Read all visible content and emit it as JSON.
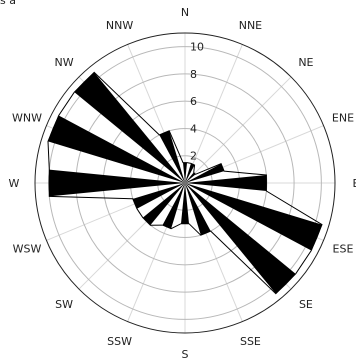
{
  "corner_note": "s a",
  "chart_data": {
    "type": "polar-rose",
    "title": "",
    "directions": [
      "N",
      "NNE",
      "NE",
      "ENE",
      "E",
      "ESE",
      "SE",
      "SSE",
      "S",
      "SSW",
      "SW",
      "WSW",
      "W",
      "WNW",
      "NW",
      "NNW"
    ],
    "series": [
      {
        "name": "",
        "values": [
          1.5,
          1.5,
          1.0,
          3.0,
          6.0,
          10.5,
          10.5,
          4.0,
          3.0,
          3.5,
          4.0,
          4.0,
          10.0,
          10.5,
          10.5,
          4.0
        ]
      }
    ],
    "radial_ticks": [
      2,
      4,
      6,
      8,
      10
    ],
    "radial_max": 11,
    "grid": true,
    "colors": {
      "fill": "#000000",
      "outline": "#000000",
      "grid": "#b8b8b8",
      "spokes": "#d8d8d8"
    }
  }
}
